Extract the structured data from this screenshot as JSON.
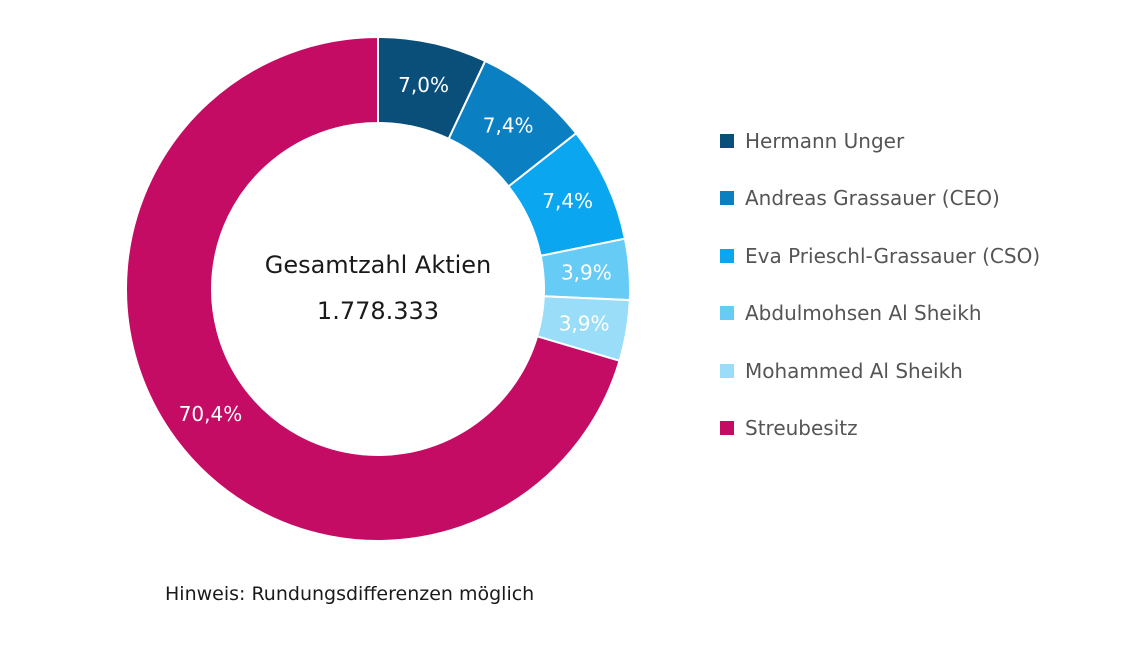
{
  "chart_data": {
    "type": "pie",
    "donut": true,
    "center_title": "Gesamtzahl Aktien",
    "center_value": "1.778.333",
    "legend_placement": "right",
    "slices": [
      {
        "name": "Hermann Unger",
        "value": 7.0,
        "label": "7,0%",
        "color": "#0a4f7a"
      },
      {
        "name": "Andreas Grassauer (CEO)",
        "value": 7.4,
        "label": "7,4%",
        "color": "#0a7fc2"
      },
      {
        "name": "Eva Prieschl-Grassauer (CSO)",
        "value": 7.4,
        "label": "7,4%",
        "color": "#0aa6f0"
      },
      {
        "name": "Abdulmohsen Al Sheikh",
        "value": 3.9,
        "label": "3,9%",
        "color": "#66ccf6"
      },
      {
        "name": "Mohammed Al Sheikh",
        "value": 3.9,
        "label": "3,9%",
        "color": "#99ddf8"
      },
      {
        "name": "Streubesitz",
        "value": 70.4,
        "label": "70,4%",
        "color": "#c40c65"
      }
    ],
    "footnote": "Hinweis: Rundungsdifferenzen möglich"
  }
}
